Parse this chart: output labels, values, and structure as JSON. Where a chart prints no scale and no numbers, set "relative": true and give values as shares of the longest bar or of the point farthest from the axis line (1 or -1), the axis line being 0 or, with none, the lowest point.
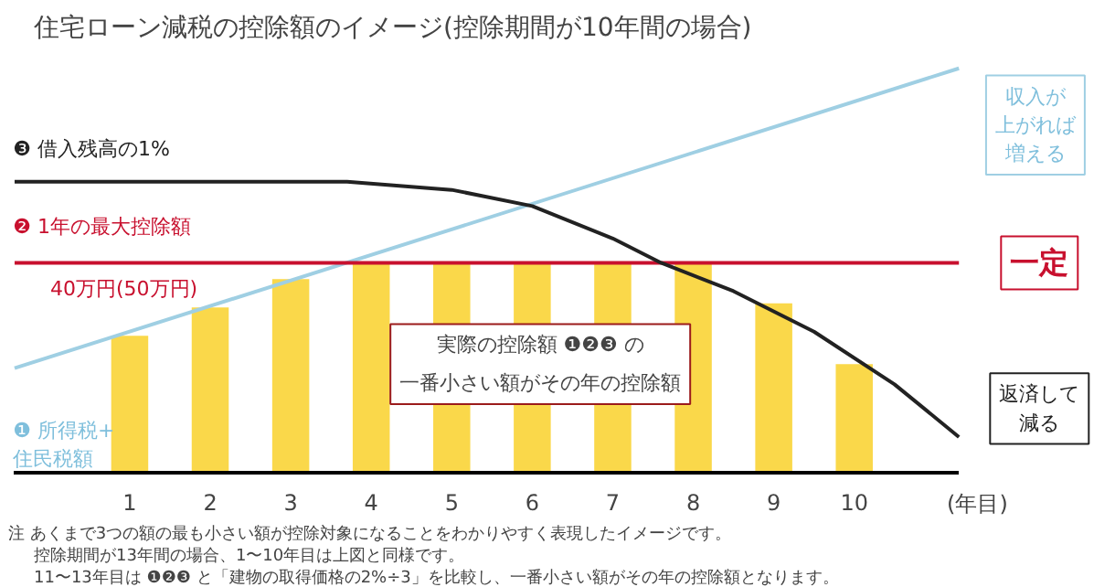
{
  "chart_data": {
    "type": "bar",
    "title": "住宅ローン減税の控除額のイメージ(控除期間が10年間の場合)",
    "xlabel": "(年目)",
    "relative": true,
    "grid": false,
    "x": [
      1,
      2,
      3,
      4,
      5,
      6,
      7,
      8,
      9,
      10
    ],
    "xlim": [
      -0.45,
      11.3
    ],
    "xticks": [
      1,
      2,
      3,
      4,
      5,
      6,
      7,
      8,
      9,
      10
    ],
    "series": [
      {
        "color": "#fad84a",
        "values": [
          0.34,
          0.41,
          0.48,
          0.52,
          0.52,
          0.52,
          0.52,
          0.52,
          0.42,
          0.27
        ]
      },
      {
        "type": "line",
        "name": "❶ 所得税+住民税額",
        "color": "#9fcfe3",
        "x": [
          -0.43,
          11.3
        ],
        "values": [
          0.26,
          1.0
        ]
      },
      {
        "type": "line",
        "name": "❷ 1年の最大控除額",
        "color": "#c8102e",
        "x": [
          -0.43,
          11.3
        ],
        "values": [
          0.52,
          0.52
        ]
      },
      {
        "type": "line",
        "name": "❸ 借入残高の1%",
        "color": "#222222",
        "x": [
          -0.43,
          3.7,
          5,
          6,
          7,
          7.6,
          8.5,
          9.5,
          10.5,
          11.3
        ],
        "values": [
          0.72,
          0.72,
          0.7,
          0.66,
          0.58,
          0.52,
          0.45,
          0.35,
          0.22,
          0.09
        ]
      }
    ],
    "annotations": [
      "40万円(50万円)",
      "実際の控除額 ❶❷❸ の一番小さい額がその年の控除額",
      "収入が上がれば増える",
      "一定",
      "返済して減る",
      "注 あくまで3つの額の最も小さい額が控除対象になることをわかりやすく表現したイメージです。",
      "控除期間が13年間の場合、1〜10年目は上図と同様です。",
      "11〜13年目は ❶❷❸ と「建物の取得価格の2%÷3」を比較し、一番小さい額がその年の控除額となります。"
    ]
  }
}
